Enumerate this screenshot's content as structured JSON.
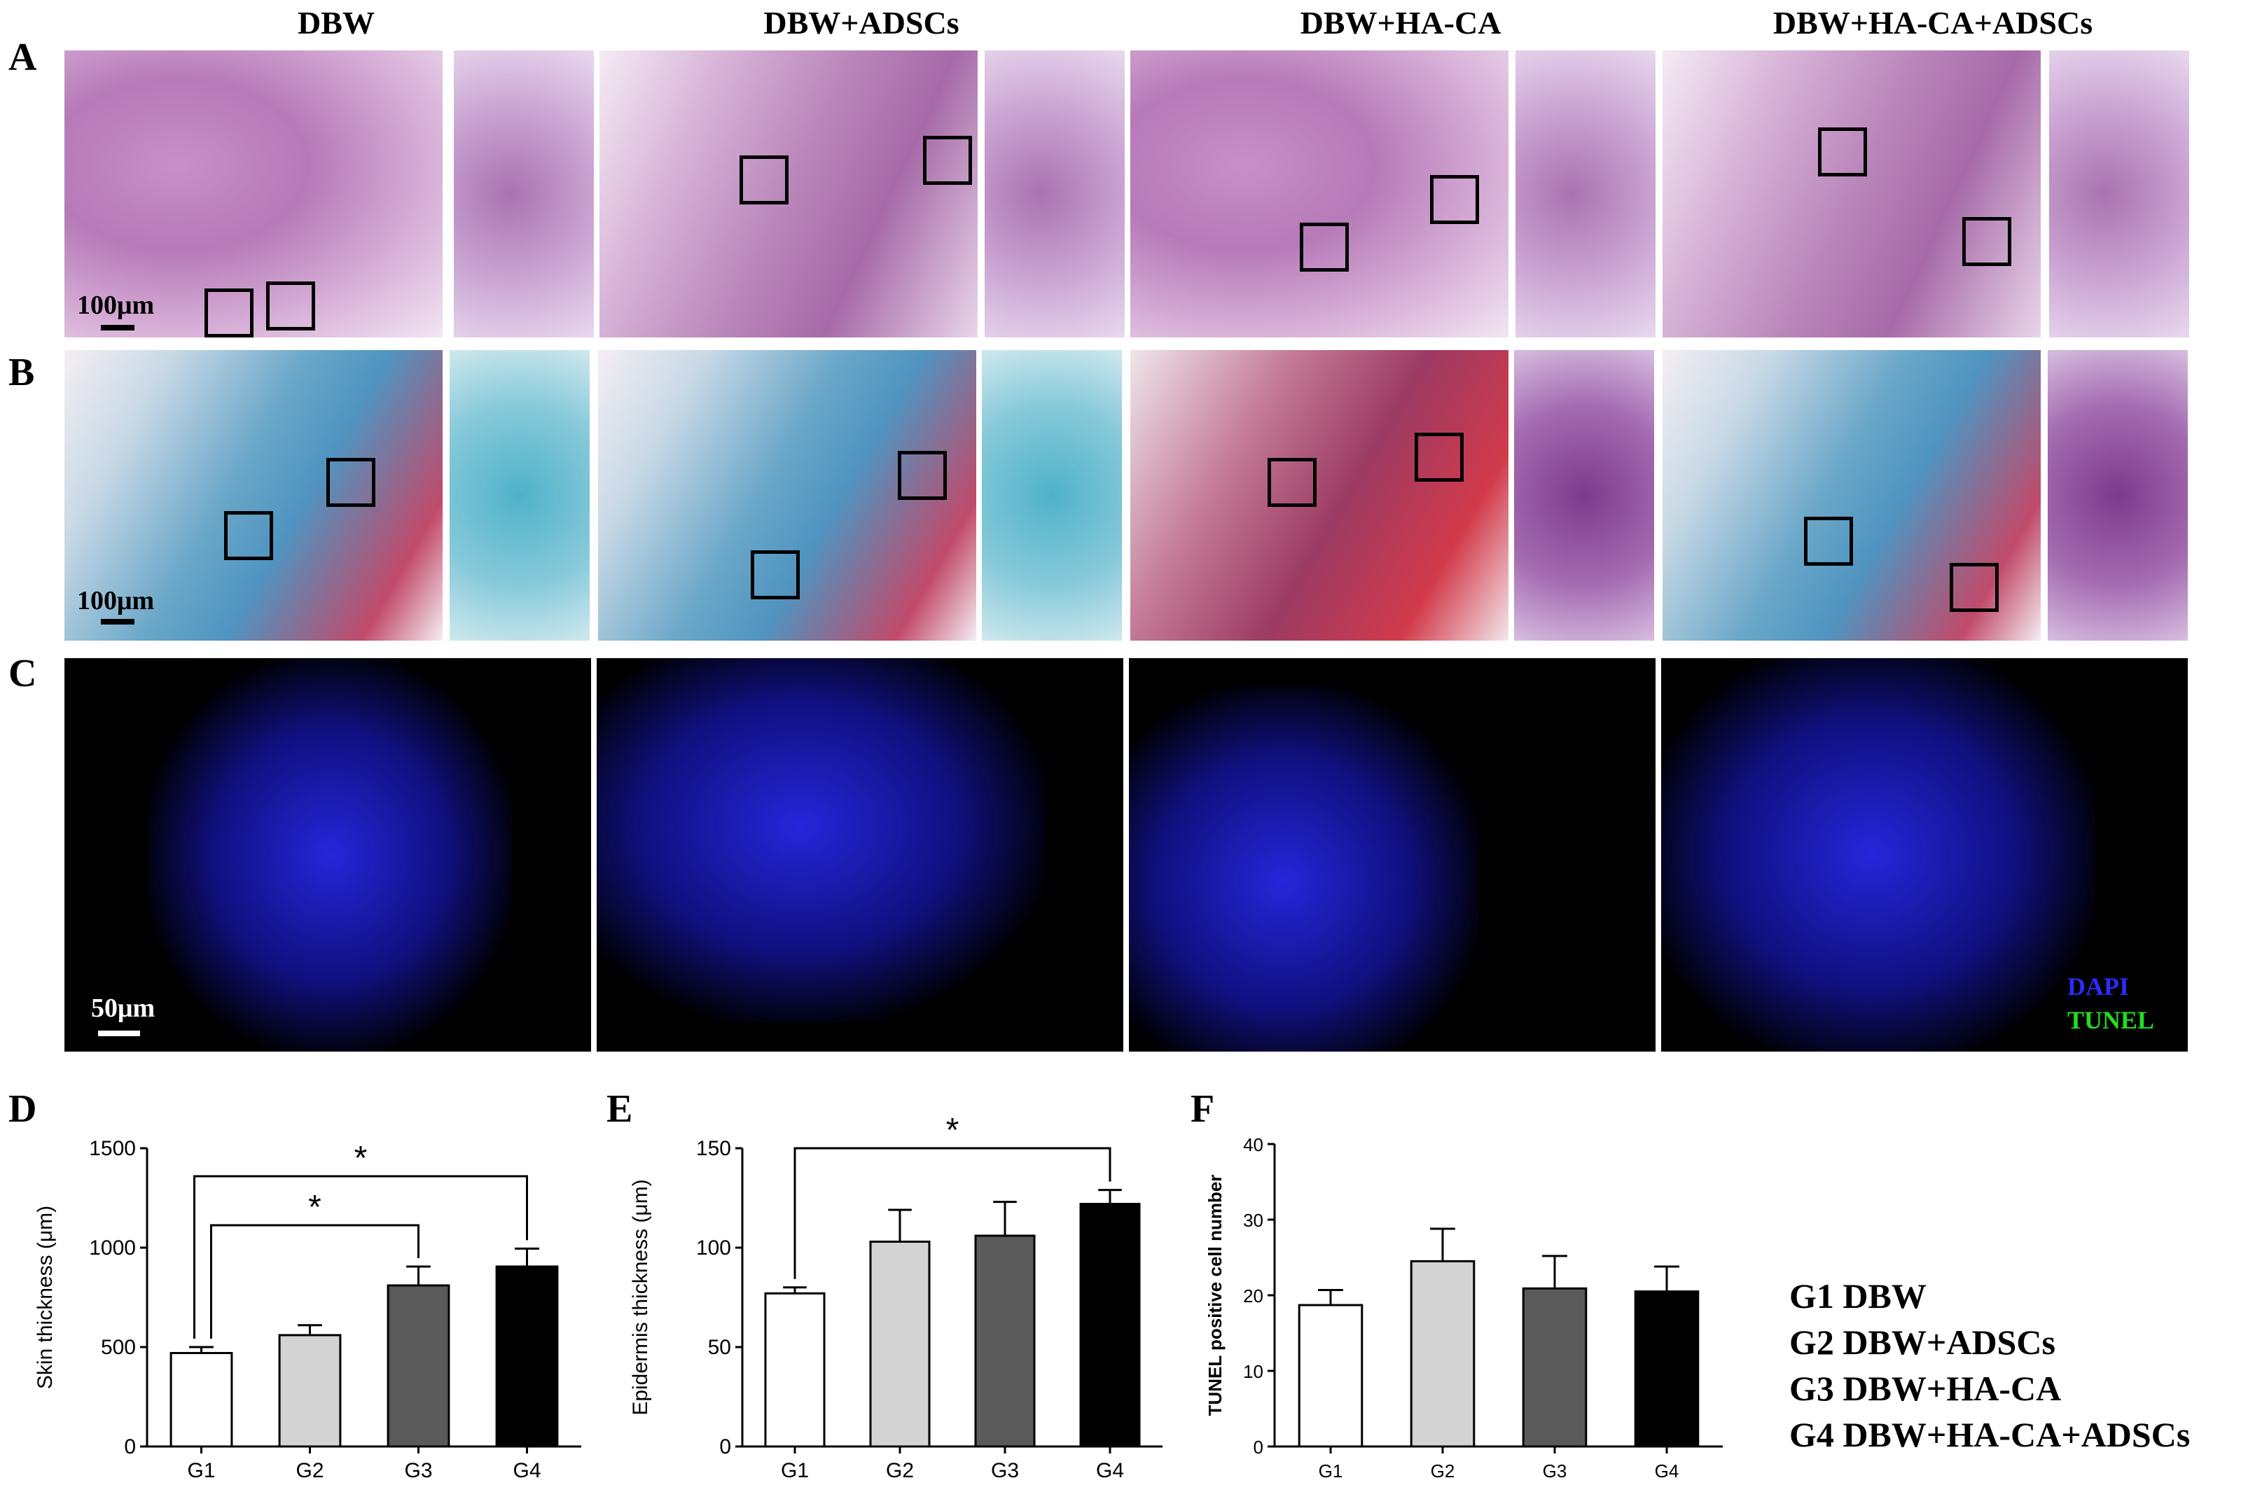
{
  "column_titles": [
    "DBW",
    "DBW+ADSCs",
    "DBW+HA-CA",
    "DBW+HA-CA+ADSCs"
  ],
  "row_letters": [
    "A",
    "B",
    "C"
  ],
  "scale_bars": {
    "a": "100μm",
    "b": "100μm",
    "c": "50μm"
  },
  "fluorescence_labels": {
    "dapi": "DAPI",
    "tunel": "TUNEL"
  },
  "colors": {
    "dapi": "#2b2bff",
    "tunel": "#22dd22",
    "bar_g1": "#ffffff",
    "bar_g2": "#d3d3d3",
    "bar_g3": "#5a5a5a",
    "bar_g4": "#000000"
  },
  "legend": [
    "G1 DBW",
    "G2 DBW+ADSCs",
    "G3 DBW+HA-CA",
    "G4 DBW+HA-CA+ADSCs"
  ],
  "chart_data": [
    {
      "panel": "D",
      "type": "bar",
      "categories": [
        "G1",
        "G2",
        "G3",
        "G4"
      ],
      "values": [
        470,
        560,
        810,
        905
      ],
      "errors": [
        30,
        50,
        95,
        90
      ],
      "ylabel": "Skin thickness (μm)",
      "ylim": [
        0,
        1500
      ],
      "yticks": [
        "0",
        "500",
        "1000",
        "1500"
      ],
      "significance": [
        {
          "from": "G1",
          "to": "G3",
          "label": "*"
        },
        {
          "from": "G1",
          "to": "G4",
          "label": "*"
        }
      ]
    },
    {
      "panel": "E",
      "type": "bar",
      "categories": [
        "G1",
        "G2",
        "G3",
        "G4"
      ],
      "values": [
        77,
        103,
        106,
        122
      ],
      "errors": [
        3,
        16,
        17,
        7
      ],
      "ylabel": "Epidermis thickness (μm)",
      "ylim": [
        0,
        150
      ],
      "yticks": [
        "0",
        "50",
        "100",
        "150"
      ],
      "significance": [
        {
          "from": "G1",
          "to": "G4",
          "label": "*"
        }
      ]
    },
    {
      "panel": "F",
      "type": "bar",
      "categories": [
        "G1",
        "G2",
        "G3",
        "G4"
      ],
      "values": [
        18.7,
        24.5,
        20.9,
        20.5
      ],
      "errors": [
        2.0,
        4.3,
        4.3,
        3.3
      ],
      "ylabel": "TUNEL positive cell number",
      "ylim": [
        0,
        40
      ],
      "yticks": [
        "0",
        "10",
        "20",
        "30",
        "40"
      ],
      "significance": []
    }
  ],
  "panel_letters": [
    "D",
    "E",
    "F"
  ]
}
